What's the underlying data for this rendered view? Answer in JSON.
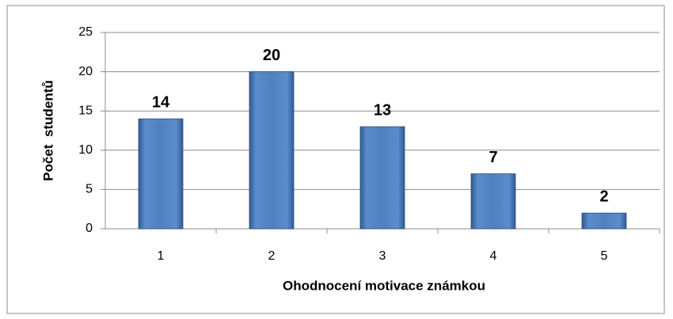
{
  "chart_data": {
    "type": "bar",
    "categories": [
      "1",
      "2",
      "3",
      "4",
      "5"
    ],
    "values": [
      14,
      20,
      13,
      7,
      2
    ],
    "color": "#4f81bd",
    "xlabel": "Ohodnocení motivace známkou",
    "ylabel": "Počet  studentů",
    "ylim": [
      0,
      25
    ],
    "yticks": [
      0,
      5,
      10,
      15,
      20,
      25
    ],
    "grid": true
  }
}
